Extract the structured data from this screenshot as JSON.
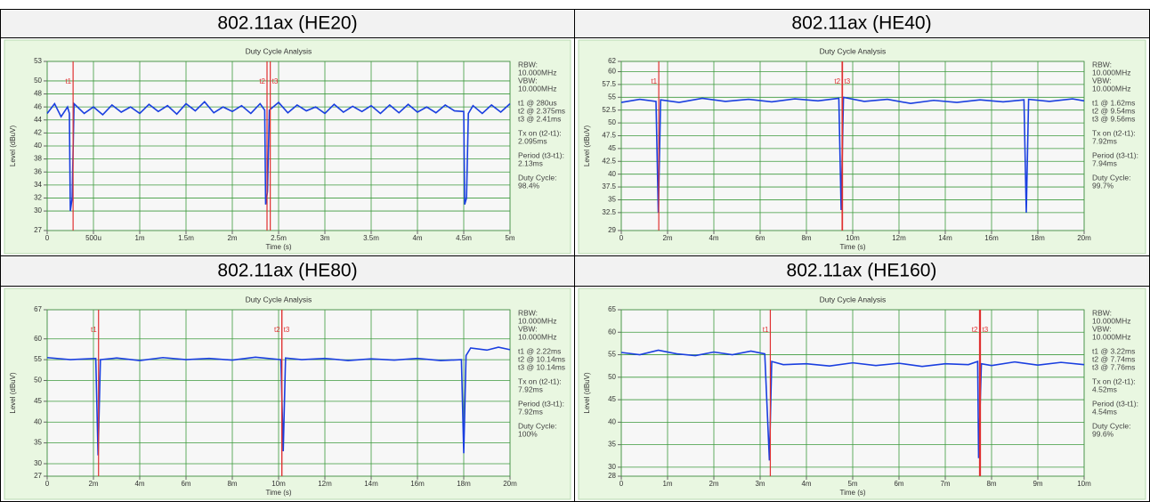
{
  "table": {
    "headers": [
      "802.11ax (HE20)",
      "802.11ax (HE40)",
      "802.11ax (HE80)",
      "802.11ax (HE160)"
    ]
  },
  "chart_data": [
    {
      "type": "line",
      "title": "Duty Cycle Analysis",
      "x_label": "Time (s)",
      "y_label": "Level (dBuV)",
      "xlim": [
        0,
        0.005
      ],
      "xticks": [
        0,
        {
          "value": 0.0005,
          "label": "500u"
        },
        {
          "value": 0.001,
          "label": "1m"
        },
        {
          "value": 0.0015,
          "label": "1.5m"
        },
        {
          "value": 0.002,
          "label": "2m"
        },
        {
          "value": 0.0025,
          "label": "2.5m"
        },
        {
          "value": 0.003,
          "label": "3m"
        },
        {
          "value": 0.0035,
          "label": "3.5m"
        },
        {
          "value": 0.004,
          "label": "4m"
        },
        {
          "value": 0.0045,
          "label": "4.5m"
        },
        {
          "value": 0.005,
          "label": "5m"
        }
      ],
      "ylim": [
        27,
        53
      ],
      "yticks": [
        27,
        30,
        32,
        34,
        36,
        38,
        40,
        42,
        44,
        46,
        48,
        50,
        53
      ],
      "grid": true,
      "x": [
        0,
        8e-05,
        0.00015,
        0.00022,
        0.00024,
        0.00025,
        0.00027,
        0.00029,
        0.0004,
        0.0005,
        0.0006,
        0.0007,
        0.0008,
        0.0009,
        0.001,
        0.0011,
        0.0012,
        0.0013,
        0.0014,
        0.0015,
        0.0016,
        0.0017,
        0.0018,
        0.0019,
        0.002,
        0.0021,
        0.0022,
        0.0023,
        0.00235,
        0.00236,
        0.00238,
        0.0024,
        0.0025,
        0.0026,
        0.0027,
        0.0028,
        0.0029,
        0.003,
        0.0031,
        0.0032,
        0.0033,
        0.0034,
        0.0035,
        0.0036,
        0.0037,
        0.0038,
        0.0039,
        0.004,
        0.0041,
        0.0042,
        0.0043,
        0.0044,
        0.0045,
        0.00451,
        0.00453,
        0.00455,
        0.0046,
        0.0047,
        0.0048,
        0.0049,
        0.005
      ],
      "series": [
        {
          "color": "#1a3fe0",
          "values": [
            45,
            46.5,
            44.5,
            46,
            45,
            30,
            32,
            46.5,
            45,
            46,
            44.8,
            46.3,
            45.2,
            46,
            45,
            46.4,
            45.3,
            46.2,
            44.9,
            46.5,
            45.4,
            46.8,
            45.1,
            46,
            45.3,
            46.2,
            45,
            46.5,
            45.5,
            31,
            33,
            45.5,
            46.7,
            45.1,
            46.3,
            45.4,
            46,
            45,
            46.4,
            45.2,
            46.1,
            45.3,
            46.2,
            45,
            46.3,
            45.1,
            46.4,
            45.2,
            46,
            45.1,
            46.3,
            45.4,
            45.3,
            31,
            32,
            45,
            46.2,
            45,
            46.3,
            45.2,
            46.5
          ]
        }
      ],
      "markers": [
        {
          "name": "t1",
          "x": 0.00028
        },
        {
          "name": "t2",
          "x": 0.002375
        },
        {
          "name": "t3",
          "x": 0.00241
        }
      ],
      "marker_color": "#e03030",
      "annotations": [
        [
          "RBW:",
          "10.000MHz",
          "VBW:",
          "10.000MHz"
        ],
        [
          "t1 @ 280us",
          "t2 @ 2.375ms",
          "t3 @ 2.41ms"
        ],
        [
          "Tx on (t2-t1):",
          "2.095ms"
        ],
        [
          "Period (t3-t1):",
          "2.13ms"
        ],
        [
          "Duty Cycle:",
          "98.4%"
        ]
      ]
    },
    {
      "type": "line",
      "title": "Duty Cycle Analysis",
      "x_label": "Time (s)",
      "y_label": "Level (dBuV)",
      "xlim": [
        0,
        0.02
      ],
      "xticks": [
        0,
        {
          "value": 0.002,
          "label": "2m"
        },
        {
          "value": 0.004,
          "label": "4m"
        },
        {
          "value": 0.006,
          "label": "6m"
        },
        {
          "value": 0.008,
          "label": "8m"
        },
        {
          "value": 0.01,
          "label": "10m"
        },
        {
          "value": 0.012,
          "label": "12m"
        },
        {
          "value": 0.014,
          "label": "14m"
        },
        {
          "value": 0.016,
          "label": "16m"
        },
        {
          "value": 0.018,
          "label": "18m"
        },
        {
          "value": 0.02,
          "label": "20m"
        }
      ],
      "ylim": [
        29,
        62
      ],
      "yticks": [
        29,
        32.5,
        35,
        37.5,
        40,
        42.5,
        45,
        47.5,
        50,
        52.5,
        55,
        57.5,
        60,
        62
      ],
      "grid": true,
      "x": [
        0,
        0.0008,
        0.0015,
        0.0016,
        0.0017,
        0.0025,
        0.0035,
        0.0045,
        0.0055,
        0.0065,
        0.0075,
        0.0085,
        0.0094,
        0.0095,
        0.0096,
        0.0105,
        0.0115,
        0.0125,
        0.0135,
        0.0145,
        0.0155,
        0.0165,
        0.0174,
        0.0175,
        0.0176,
        0.0185,
        0.0195,
        0.02
      ],
      "series": [
        {
          "color": "#1a3fe0",
          "values": [
            54,
            54.6,
            54.2,
            32.5,
            54.5,
            54,
            54.8,
            54.2,
            54.6,
            54.1,
            54.7,
            54.3,
            54.8,
            33,
            55,
            54.2,
            54.6,
            53.8,
            54.4,
            54,
            54.5,
            54.1,
            54.5,
            32.5,
            54.6,
            54.2,
            54.7,
            54.3
          ]
        }
      ],
      "markers": [
        {
          "name": "t1",
          "x": 0.00162
        },
        {
          "name": "t2",
          "x": 0.00954
        },
        {
          "name": "t3",
          "x": 0.00956
        }
      ],
      "marker_color": "#e03030",
      "annotations": [
        [
          "RBW:",
          "10.000MHz",
          "VBW:",
          "10.000MHz"
        ],
        [
          "t1 @ 1.62ms",
          "t2 @ 9.54ms",
          "t3 @ 9.56ms"
        ],
        [
          "Tx on (t2-t1):",
          "7.92ms"
        ],
        [
          "Period (t3-t1):",
          "7.94ms"
        ],
        [
          "Duty Cycle:",
          "99.7%"
        ]
      ]
    },
    {
      "type": "line",
      "title": "Duty Cycle Analysis",
      "x_label": "Time (s)",
      "y_label": "Level (dBuV)",
      "xlim": [
        0,
        0.02
      ],
      "xticks": [
        0,
        {
          "value": 0.002,
          "label": "2m"
        },
        {
          "value": 0.004,
          "label": "4m"
        },
        {
          "value": 0.006,
          "label": "6m"
        },
        {
          "value": 0.008,
          "label": "8m"
        },
        {
          "value": 0.01,
          "label": "10m"
        },
        {
          "value": 0.012,
          "label": "12m"
        },
        {
          "value": 0.014,
          "label": "14m"
        },
        {
          "value": 0.016,
          "label": "16m"
        },
        {
          "value": 0.018,
          "label": "18m"
        },
        {
          "value": 0.02,
          "label": "20m"
        }
      ],
      "ylim": [
        27,
        67
      ],
      "yticks": [
        27,
        30,
        35,
        40,
        45,
        50,
        55,
        60,
        67
      ],
      "grid": true,
      "x": [
        0,
        0.001,
        0.0021,
        0.0022,
        0.0023,
        0.003,
        0.004,
        0.005,
        0.006,
        0.007,
        0.008,
        0.009,
        0.0101,
        0.0102,
        0.0103,
        0.011,
        0.012,
        0.013,
        0.014,
        0.015,
        0.016,
        0.017,
        0.0179,
        0.018,
        0.0181,
        0.0183,
        0.019,
        0.0195,
        0.02
      ],
      "series": [
        {
          "color": "#1a3fe0",
          "values": [
            55.5,
            55,
            55.3,
            32,
            55,
            55.4,
            54.8,
            55.5,
            55,
            55.3,
            54.9,
            55.6,
            55,
            33,
            55.4,
            55,
            55.3,
            54.8,
            55.2,
            54.9,
            55.3,
            54.8,
            55,
            32.5,
            56,
            57.8,
            57.3,
            58,
            57.4
          ]
        }
      ],
      "markers": [
        {
          "name": "t1",
          "x": 0.00222
        },
        {
          "name": "t2",
          "x": 0.01014
        },
        {
          "name": "t3",
          "x": 0.01014
        }
      ],
      "marker_color": "#e03030",
      "annotations": [
        [
          "RBW:",
          "10.000MHz",
          "VBW:",
          "10.000MHz"
        ],
        [
          "t1 @ 2.22ms",
          "t2 @ 10.14ms",
          "t3 @ 10.14ms"
        ],
        [
          "Tx on (t2-t1):",
          "7.92ms"
        ],
        [
          "Period (t3-t1):",
          "7.92ms"
        ],
        [
          "Duty Cycle:",
          "100%"
        ]
      ]
    },
    {
      "type": "line",
      "title": "Duty Cycle Analysis",
      "x_label": "Time (s)",
      "y_label": "Level (dBuV)",
      "xlim": [
        0,
        0.01
      ],
      "xticks": [
        0,
        {
          "value": 0.001,
          "label": "1m"
        },
        {
          "value": 0.002,
          "label": "2m"
        },
        {
          "value": 0.003,
          "label": "3m"
        },
        {
          "value": 0.004,
          "label": "4m"
        },
        {
          "value": 0.005,
          "label": "5m"
        },
        {
          "value": 0.006,
          "label": "6m"
        },
        {
          "value": 0.007,
          "label": "7m"
        },
        {
          "value": 0.008,
          "label": "8m"
        },
        {
          "value": 0.009,
          "label": "9m"
        },
        {
          "value": 0.01,
          "label": "10m"
        }
      ],
      "ylim": [
        28,
        65
      ],
      "yticks": [
        28,
        30,
        35,
        40,
        45,
        50,
        55,
        60,
        65
      ],
      "grid": true,
      "x": [
        0,
        0.0004,
        0.0008,
        0.0012,
        0.0016,
        0.002,
        0.0024,
        0.0028,
        0.0031,
        0.0032,
        0.00325,
        0.0035,
        0.004,
        0.0045,
        0.005,
        0.0055,
        0.006,
        0.0065,
        0.007,
        0.0075,
        0.0077,
        0.00772,
        0.00778,
        0.008,
        0.0085,
        0.009,
        0.0095,
        0.01
      ],
      "series": [
        {
          "color": "#1a3fe0",
          "values": [
            55.5,
            55,
            56,
            55.2,
            54.8,
            55.6,
            55,
            55.8,
            55.2,
            31.5,
            53.5,
            52.8,
            53,
            52.5,
            53.2,
            52.6,
            53.1,
            52.4,
            53,
            52.8,
            53.5,
            32,
            53,
            52.6,
            53.4,
            52.7,
            53.3,
            52.8
          ]
        }
      ],
      "markers": [
        {
          "name": "t1",
          "x": 0.00322
        },
        {
          "name": "t2",
          "x": 0.00774
        },
        {
          "name": "t3",
          "x": 0.00776
        }
      ],
      "marker_color": "#e03030",
      "annotations": [
        [
          "RBW:",
          "10.000MHz",
          "VBW:",
          "10.000MHz"
        ],
        [
          "t1 @ 3.22ms",
          "t2 @ 7.74ms",
          "t3 @ 7.76ms"
        ],
        [
          "Tx on (t2-t1):",
          "4.52ms"
        ],
        [
          "Period (t3-t1):",
          "4.54ms"
        ],
        [
          "Duty Cycle:",
          "99.6%"
        ]
      ]
    }
  ]
}
